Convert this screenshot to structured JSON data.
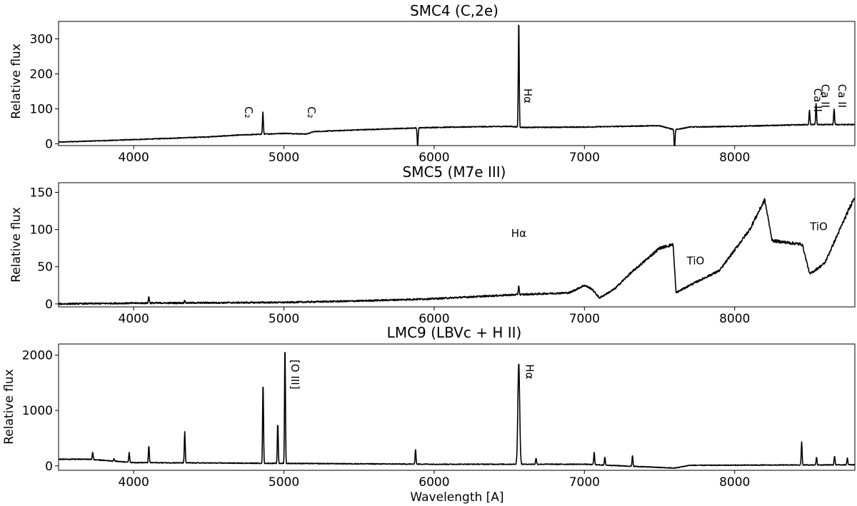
{
  "chart_data": [
    {
      "type": "line",
      "title": "SMC4 (C,2e)",
      "xlabel": "",
      "ylabel": "Relative flux",
      "xlim": [
        3500,
        8800
      ],
      "ylim": [
        -5,
        350
      ],
      "xticks": [
        4000,
        5000,
        6000,
        7000,
        8000
      ],
      "yticks": [
        0,
        100,
        200,
        300
      ],
      "grid": false,
      "series": [
        {
          "continuum": [
            [
              3500,
              5
            ],
            [
              4000,
              12
            ],
            [
              4500,
              20
            ],
            [
              4700,
              25
            ],
            [
              5000,
              30
            ],
            [
              5150,
              28
            ],
            [
              5200,
              35
            ],
            [
              5500,
              40
            ],
            [
              6000,
              47
            ],
            [
              6500,
              50
            ],
            [
              6600,
              47
            ],
            [
              7000,
              48
            ],
            [
              7500,
              52
            ],
            [
              7600,
              40
            ],
            [
              7700,
              48
            ],
            [
              8000,
              50
            ],
            [
              8500,
              55
            ],
            [
              8800,
              55
            ]
          ],
          "lines": [
            [
              4860,
              90
            ],
            [
              5890,
              -12
            ],
            [
              6563,
              355
            ],
            [
              7600,
              -25
            ],
            [
              8498,
              97
            ],
            [
              8542,
              115
            ],
            [
              8662,
              100
            ]
          ]
        }
      ],
      "annotations": [
        {
          "text": "C₂",
          "x": 4740,
          "y": 90,
          "rotation": 90
        },
        {
          "text": "C₂",
          "x": 5160,
          "y": 90,
          "rotation": 90
        },
        {
          "text": "Hα",
          "x": 6600,
          "y": 137,
          "rotation": 90
        },
        {
          "text": "Ca II",
          "x": 8530,
          "y": 125,
          "rotation": 90
        },
        {
          "text": "Ca II",
          "x": 8580,
          "y": 137,
          "rotation": 90
        },
        {
          "text": "Ca II",
          "x": 8690,
          "y": 137,
          "rotation": 90
        }
      ]
    },
    {
      "type": "line",
      "title": "SMC5 (M7e III)",
      "xlabel": "",
      "ylabel": "Relative flux",
      "xlim": [
        3500,
        8800
      ],
      "ylim": [
        -4,
        163
      ],
      "xticks": [
        4000,
        5000,
        6000,
        7000,
        8000
      ],
      "yticks": [
        0,
        50,
        100,
        150
      ],
      "grid": false,
      "series": [
        {
          "continuum": [
            [
              3500,
              0
            ],
            [
              4000,
              1
            ],
            [
              5000,
              2
            ],
            [
              5500,
              4
            ],
            [
              6000,
              7
            ],
            [
              6500,
              12
            ],
            [
              6900,
              15
            ],
            [
              7000,
              25
            ],
            [
              7050,
              20
            ],
            [
              7100,
              8
            ],
            [
              7200,
              20
            ],
            [
              7300,
              40
            ],
            [
              7500,
              75
            ],
            [
              7590,
              80
            ],
            [
              7610,
              15
            ],
            [
              7700,
              25
            ],
            [
              7900,
              45
            ],
            [
              8100,
              100
            ],
            [
              8200,
              140
            ],
            [
              8250,
              85
            ],
            [
              8450,
              80
            ],
            [
              8500,
              40
            ],
            [
              8600,
              55
            ],
            [
              8800,
              145
            ]
          ],
          "lines": [
            [
              4101,
              10
            ],
            [
              4340,
              5
            ],
            [
              6563,
              25
            ]
          ]
        }
      ],
      "annotations": [
        {
          "text": "Hα",
          "x": 6563,
          "y": 90
        },
        {
          "text": "TiO",
          "x": 7740,
          "y": 53
        },
        {
          "text": "TiO",
          "x": 8560,
          "y": 99
        }
      ]
    },
    {
      "type": "line",
      "title": "LMC9 (LBVc + H II)",
      "xlabel": "Wavelength [A]",
      "ylabel": "Relative flux",
      "xlim": [
        3500,
        8800
      ],
      "ylim": [
        -80,
        2200
      ],
      "xticks": [
        4000,
        5000,
        6000,
        7000,
        8000
      ],
      "yticks": [
        0,
        1000,
        2000
      ],
      "grid": false,
      "series": [
        {
          "continuum": [
            [
              3500,
              120
            ],
            [
              3700,
              120
            ],
            [
              4000,
              60
            ],
            [
              5000,
              45
            ],
            [
              6000,
              30
            ],
            [
              7000,
              30
            ],
            [
              7600,
              -40
            ],
            [
              7700,
              10
            ],
            [
              8800,
              20
            ]
          ],
          "lines": [
            [
              3727,
              250
            ],
            [
              3869,
              130
            ],
            [
              3970,
              240
            ],
            [
              4101,
              360
            ],
            [
              4340,
              620
            ],
            [
              4861,
              1500
            ],
            [
              4959,
              770
            ],
            [
              5007,
              2160
            ],
            [
              5876,
              300
            ],
            [
              6563,
              1860
            ],
            [
              6678,
              140
            ],
            [
              7065,
              250
            ],
            [
              7136,
              150
            ],
            [
              7320,
              180
            ],
            [
              8446,
              430
            ],
            [
              8545,
              160
            ],
            [
              8665,
              180
            ],
            [
              8750,
              140
            ]
          ]
        }
      ],
      "annotations": [
        {
          "text": "[O III]",
          "x": 5050,
          "y": 1650,
          "rotation": 90
        },
        {
          "text": "Hα",
          "x": 6610,
          "y": 1700,
          "rotation": 90
        }
      ]
    }
  ]
}
